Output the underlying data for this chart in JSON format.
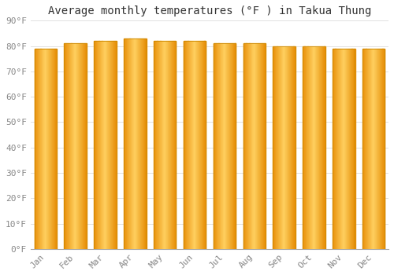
{
  "title": "Average monthly temperatures (°F ) in Takua Thung",
  "months": [
    "Jan",
    "Feb",
    "Mar",
    "Apr",
    "May",
    "Jun",
    "Jul",
    "Aug",
    "Sep",
    "Oct",
    "Nov",
    "Dec"
  ],
  "values": [
    79,
    81,
    82,
    83,
    82,
    82,
    81,
    81,
    80,
    80,
    79,
    79
  ],
  "ylim": [
    0,
    90
  ],
  "yticks": [
    0,
    10,
    20,
    30,
    40,
    50,
    60,
    70,
    80,
    90
  ],
  "ytick_labels": [
    "0°F",
    "10°F",
    "20°F",
    "30°F",
    "40°F",
    "50°F",
    "60°F",
    "70°F",
    "80°F",
    "90°F"
  ],
  "bar_color_edge": "#E8900A",
  "bar_color_center": "#FFD060",
  "bar_edge_color": "#CC8800",
  "background_color": "#FFFFFF",
  "grid_color": "#E0E0E0",
  "title_fontsize": 10,
  "tick_fontsize": 8,
  "bar_width": 0.75,
  "gradient_steps": 50
}
